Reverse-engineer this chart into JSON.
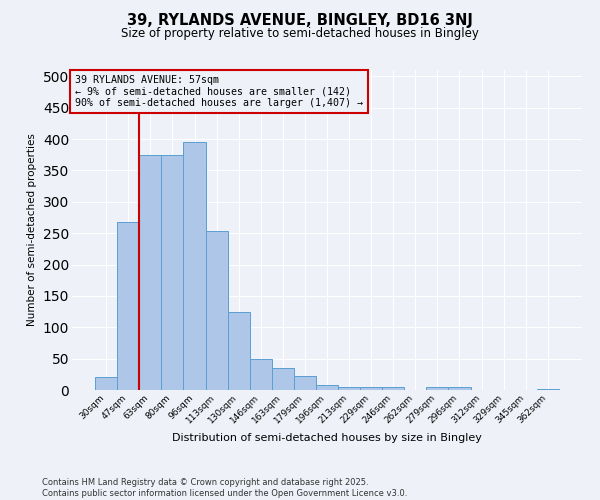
{
  "title": "39, RYLANDS AVENUE, BINGLEY, BD16 3NJ",
  "subtitle": "Size of property relative to semi-detached houses in Bingley",
  "xlabel": "Distribution of semi-detached houses by size in Bingley",
  "ylabel": "Number of semi-detached properties",
  "categories": [
    "30sqm",
    "47sqm",
    "63sqm",
    "80sqm",
    "96sqm",
    "113sqm",
    "130sqm",
    "146sqm",
    "163sqm",
    "179sqm",
    "196sqm",
    "213sqm",
    "229sqm",
    "246sqm",
    "262sqm",
    "279sqm",
    "296sqm",
    "312sqm",
    "329sqm",
    "345sqm",
    "362sqm"
  ],
  "values": [
    20,
    268,
    375,
    375,
    395,
    253,
    125,
    50,
    35,
    22,
    8,
    5,
    5,
    4,
    0,
    5,
    5,
    0,
    0,
    0,
    2
  ],
  "bar_color": "#aec6e8",
  "bar_edge_color": "#5a9fd4",
  "property_label": "39 RYLANDS AVENUE: 57sqm",
  "annotation_line1": "← 9% of semi-detached houses are smaller (142)",
  "annotation_line2": "90% of semi-detached houses are larger (1,407) →",
  "vline_x_index": 1.5,
  "vline_color": "#cc0000",
  "annotation_box_color": "#cc0000",
  "ylim": [
    0,
    510
  ],
  "yticks": [
    0,
    50,
    100,
    150,
    200,
    250,
    300,
    350,
    400,
    450,
    500
  ],
  "background_color": "#eef2f8",
  "grid_color": "#ffffff",
  "footer_line1": "Contains HM Land Registry data © Crown copyright and database right 2025.",
  "footer_line2": "Contains public sector information licensed under the Open Government Licence v3.0."
}
